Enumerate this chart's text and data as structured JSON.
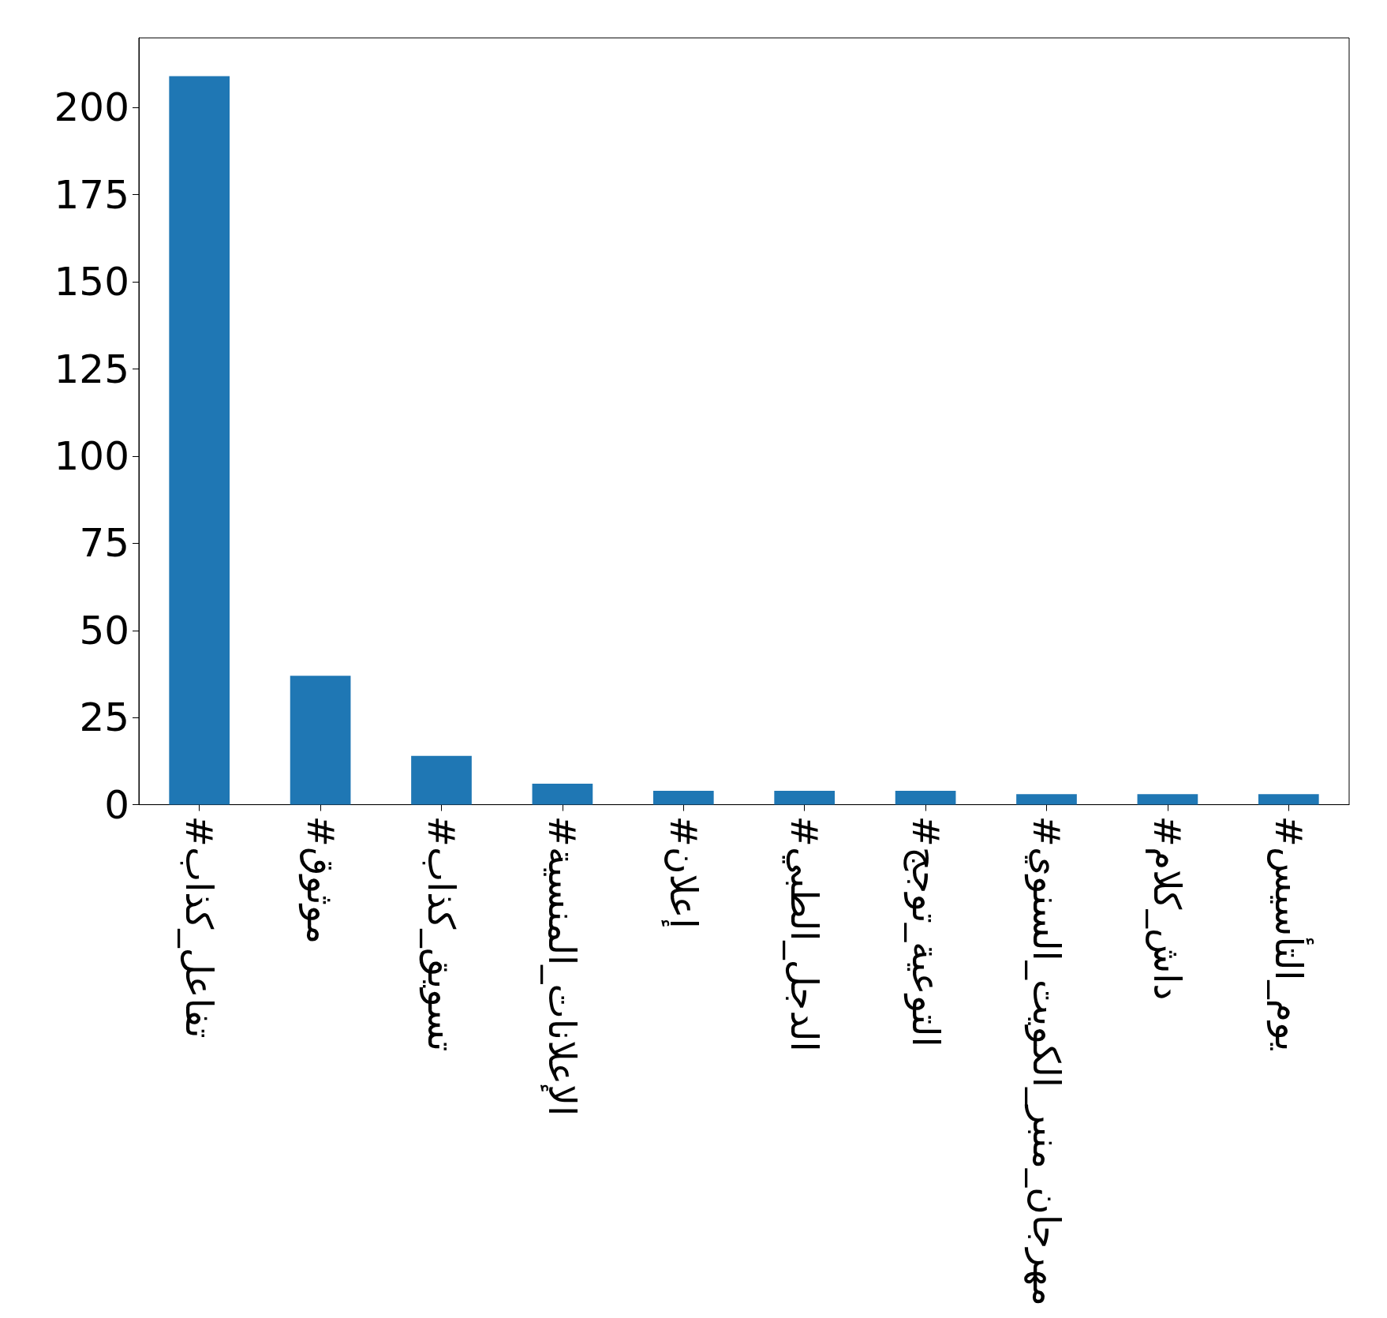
{
  "chart_data": {
    "type": "bar",
    "categories": [
      "#تفاعل_كذاب",
      "#موثوق",
      "#تسويق_كذاب",
      "#الإعلانات_المنسية",
      "#إعلان",
      "#الدجل_الطبي",
      "#التوعية_توجج",
      "#مهرجان_منبر_الكويت_السنوي",
      "#داش_كلام",
      "#يوم_التأسيس"
    ],
    "values": [
      209,
      37,
      14,
      6,
      4,
      4,
      4,
      3,
      3,
      3
    ],
    "color": "#1f77b4",
    "ylim": [
      0,
      220
    ],
    "yticks": [
      0,
      25,
      50,
      75,
      100,
      125,
      150,
      175,
      200
    ],
    "grid": false
  }
}
